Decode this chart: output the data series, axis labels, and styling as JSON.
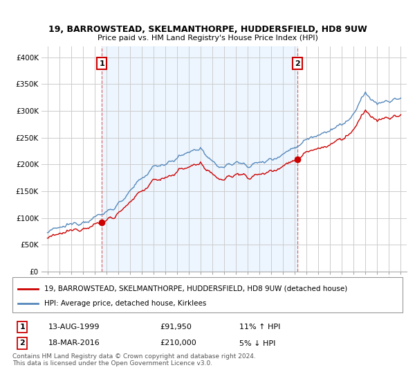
{
  "title": "19, BARROWSTEAD, SKELMANTHORPE, HUDDERSFIELD, HD8 9UW",
  "subtitle": "Price paid vs. HM Land Registry's House Price Index (HPI)",
  "legend_property": "19, BARROWSTEAD, SKELMANTHORPE, HUDDERSFIELD, HD8 9UW (detached house)",
  "legend_hpi": "HPI: Average price, detached house, Kirklees",
  "footnote": "Contains HM Land Registry data © Crown copyright and database right 2024.\nThis data is licensed under the Open Government Licence v3.0.",
  "point1_date": "13-AUG-1999",
  "point1_price": "£91,950",
  "point1_hpi": "11% ↑ HPI",
  "point2_date": "18-MAR-2016",
  "point2_price": "£210,000",
  "point2_hpi": "5% ↓ HPI",
  "point1_x": 1999.62,
  "point1_y": 91950,
  "point2_x": 2016.21,
  "point2_y": 210000,
  "property_color": "#cc0000",
  "hpi_color": "#5588bb",
  "hpi_fill_color": "#ddeeff",
  "vline_color": "#dd6666",
  "background_color": "#ffffff",
  "grid_color": "#cccccc",
  "ylim": [
    0,
    420000
  ],
  "xlim": [
    1994.5,
    2025.5
  ],
  "yticks": [
    0,
    50000,
    100000,
    150000,
    200000,
    250000,
    300000,
    350000,
    400000
  ],
  "ytick_labels": [
    "£0",
    "£50K",
    "£100K",
    "£150K",
    "£200K",
    "£250K",
    "£300K",
    "£350K",
    "£400K"
  ],
  "xticks": [
    1995,
    1996,
    1997,
    1998,
    1999,
    2000,
    2001,
    2002,
    2003,
    2004,
    2005,
    2006,
    2007,
    2008,
    2009,
    2010,
    2011,
    2012,
    2013,
    2014,
    2015,
    2016,
    2017,
    2018,
    2019,
    2020,
    2021,
    2022,
    2023,
    2024,
    2025
  ]
}
